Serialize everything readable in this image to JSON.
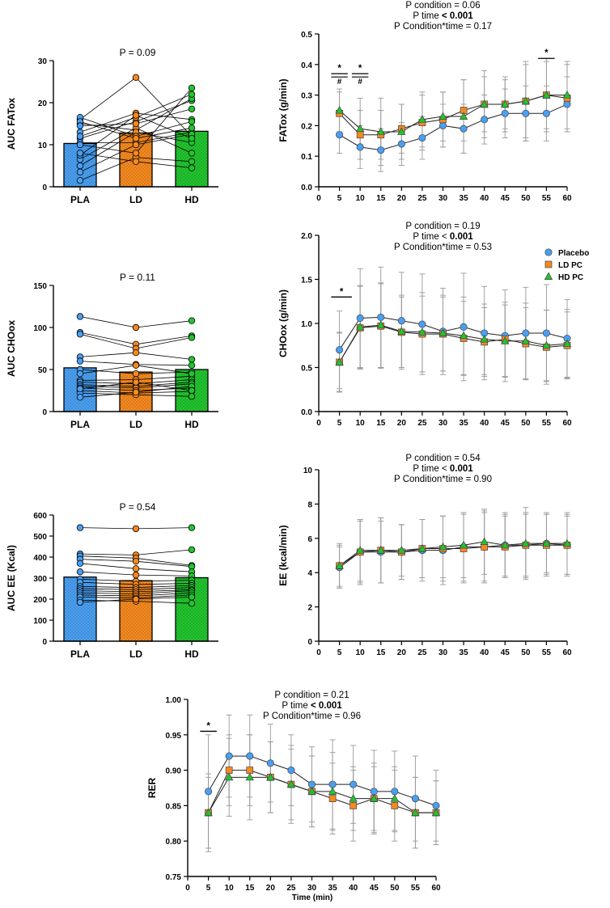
{
  "colors": {
    "placebo": "#4a9ff0",
    "ld": "#f5891f",
    "hd": "#22c42f",
    "error": "#999999",
    "axis": "#000000"
  },
  "legend": [
    {
      "label": "Placebo",
      "marker": "circle",
      "series": "placebo"
    },
    {
      "label": "LD PC",
      "marker": "square",
      "series": "ld"
    },
    {
      "label": "HD PC",
      "marker": "triangle",
      "series": "hd"
    }
  ],
  "xlabel_rer": "Time (min)",
  "chart_data": [
    {
      "id": "auc_fatox",
      "type": "bar",
      "ylabel": "AUC FATox",
      "pvalue": "P = 0.09",
      "categories": [
        "PLA",
        "LD",
        "HD"
      ],
      "means": [
        10.3,
        12.8,
        13.2
      ],
      "ylim": [
        0,
        30
      ],
      "yticks": [
        0,
        10,
        20,
        30
      ],
      "subjects": [
        [
          11.5,
          15.5,
          20.5
        ],
        [
          13.0,
          17.5,
          16.0
        ],
        [
          16.0,
          26.0,
          12.0
        ],
        [
          15.0,
          13.5,
          21.0
        ],
        [
          10.5,
          10.5,
          13.0
        ],
        [
          6.5,
          14.0,
          8.0
        ],
        [
          5.0,
          13.0,
          10.5
        ],
        [
          16.5,
          12.0,
          15.5
        ],
        [
          3.5,
          10.0,
          12.5
        ],
        [
          1.5,
          7.0,
          6.0
        ],
        [
          12.0,
          16.5,
          22.0
        ],
        [
          15.5,
          11.5,
          14.0
        ],
        [
          10.0,
          8.0,
          23.5
        ],
        [
          7.5,
          17.0,
          11.5
        ],
        [
          8.0,
          6.0,
          4.5
        ],
        [
          14.5,
          15.0,
          18.5
        ]
      ]
    },
    {
      "id": "auc_choox",
      "type": "bar",
      "ylabel": "AUC CHOox",
      "pvalue": "P = 0.11",
      "categories": [
        "PLA",
        "LD",
        "HD"
      ],
      "means": [
        52,
        47,
        50
      ],
      "ylim": [
        0,
        150
      ],
      "yticks": [
        0,
        50,
        100,
        150
      ],
      "subjects": [
        [
          113,
          100,
          108
        ],
        [
          94,
          80,
          90
        ],
        [
          92,
          75,
          88
        ],
        [
          65,
          70,
          62
        ],
        [
          60,
          56,
          55
        ],
        [
          50,
          45,
          47
        ],
        [
          37,
          38,
          42
        ],
        [
          35,
          33,
          38
        ],
        [
          32,
          30,
          35
        ],
        [
          30,
          28,
          33
        ],
        [
          28,
          25,
          28
        ],
        [
          25,
          22,
          24
        ],
        [
          22,
          20,
          18
        ],
        [
          17,
          23,
          30
        ],
        [
          45,
          55,
          45
        ],
        [
          27,
          35,
          25
        ]
      ]
    },
    {
      "id": "auc_ee",
      "type": "bar",
      "ylabel": "AUC EE (Kcal)",
      "pvalue": "P = 0.54",
      "categories": [
        "PLA",
        "LD",
        "HD"
      ],
      "means": [
        305,
        288,
        302
      ],
      "ylim": [
        0,
        600
      ],
      "yticks": [
        0,
        100,
        200,
        300,
        400,
        500,
        600
      ],
      "subjects": [
        [
          540,
          535,
          540
        ],
        [
          415,
          410,
          435
        ],
        [
          405,
          395,
          360
        ],
        [
          390,
          380,
          355
        ],
        [
          370,
          345,
          330
        ],
        [
          330,
          315,
          310
        ],
        [
          295,
          285,
          290
        ],
        [
          280,
          270,
          275
        ],
        [
          260,
          255,
          265
        ],
        [
          250,
          245,
          255
        ],
        [
          240,
          235,
          245
        ],
        [
          230,
          225,
          240
        ],
        [
          220,
          215,
          230
        ],
        [
          210,
          205,
          220
        ],
        [
          195,
          190,
          180
        ],
        [
          185,
          200,
          210
        ]
      ]
    },
    {
      "id": "fatox",
      "type": "line",
      "ylabel": "FATox (g/min)",
      "stats": [
        "P condition = 0.06",
        "P time ",
        "< 0.001",
        "P Condition*time = 0.17"
      ],
      "x": [
        5,
        10,
        15,
        20,
        25,
        30,
        35,
        40,
        45,
        50,
        55,
        60
      ],
      "xlim": [
        0,
        60
      ],
      "ylim": [
        0,
        0.5
      ],
      "yticks": [
        0.0,
        0.1,
        0.2,
        0.3,
        0.4,
        0.5
      ],
      "series": [
        {
          "name": "Placebo",
          "values": [
            0.17,
            0.13,
            0.12,
            0.14,
            0.16,
            0.2,
            0.19,
            0.22,
            0.24,
            0.24,
            0.24,
            0.27
          ],
          "sd": [
            0.06,
            0.07,
            0.07,
            0.07,
            0.07,
            0.07,
            0.08,
            0.08,
            0.08,
            0.09,
            0.09,
            0.09
          ]
        },
        {
          "name": "LD PC",
          "values": [
            0.24,
            0.17,
            0.17,
            0.19,
            0.21,
            0.22,
            0.25,
            0.27,
            0.27,
            0.28,
            0.3,
            0.29
          ],
          "sd": [
            0.07,
            0.08,
            0.08,
            0.08,
            0.09,
            0.09,
            0.1,
            0.11,
            0.09,
            0.12,
            0.11,
            0.11
          ]
        },
        {
          "name": "HD PC",
          "values": [
            0.25,
            0.19,
            0.18,
            0.18,
            0.22,
            0.23,
            0.23,
            0.27,
            0.27,
            0.28,
            0.3,
            0.3
          ],
          "sd": [
            0.07,
            0.1,
            0.11,
            0.09,
            0.09,
            0.08,
            0.12,
            0.09,
            0.08,
            0.13,
            0.12,
            0.11
          ]
        }
      ],
      "annotations": [
        {
          "x1": 3,
          "x2": 7,
          "y": 0.37,
          "text": "*",
          "sub": "#"
        },
        {
          "x1": 8,
          "x2": 12,
          "y": 0.37,
          "text": "*",
          "sub": "#"
        },
        {
          "x1": 53,
          "x2": 57,
          "y": 0.42,
          "text": "*",
          "sub": ""
        }
      ]
    },
    {
      "id": "choox",
      "type": "line",
      "ylabel": "CHOox (g/min)",
      "stats": [
        "P condition = 0.19",
        "P time < ",
        "0.001",
        "P Condition*time = 0.53"
      ],
      "x": [
        5,
        10,
        15,
        20,
        25,
        30,
        35,
        40,
        45,
        50,
        55,
        60
      ],
      "xlim": [
        0,
        60
      ],
      "ylim": [
        0,
        2.0
      ],
      "yticks": [
        0.0,
        0.5,
        1.0,
        1.5,
        2.0
      ],
      "series": [
        {
          "name": "Placebo",
          "values": [
            0.7,
            1.06,
            1.07,
            1.03,
            0.99,
            0.91,
            0.96,
            0.89,
            0.86,
            0.89,
            0.89,
            0.83
          ],
          "sd": [
            0.44,
            0.56,
            0.57,
            0.55,
            0.57,
            0.49,
            0.61,
            0.53,
            0.52,
            0.52,
            0.55,
            0.44
          ]
        },
        {
          "name": "LD PC",
          "values": [
            0.56,
            0.95,
            0.97,
            0.9,
            0.88,
            0.88,
            0.83,
            0.79,
            0.82,
            0.77,
            0.73,
            0.75
          ],
          "sd": [
            0.34,
            0.47,
            0.48,
            0.4,
            0.43,
            0.42,
            0.42,
            0.39,
            0.42,
            0.41,
            0.42,
            0.38
          ]
        },
        {
          "name": "HD PC",
          "values": [
            0.56,
            0.96,
            0.98,
            0.91,
            0.9,
            0.89,
            0.86,
            0.82,
            0.8,
            0.8,
            0.75,
            0.77
          ],
          "sd": [
            0.33,
            0.47,
            0.48,
            0.41,
            0.45,
            0.43,
            0.44,
            0.4,
            0.41,
            0.43,
            0.4,
            0.39
          ]
        }
      ],
      "annotations": [
        {
          "x1": 3,
          "x2": 8,
          "y": 1.3,
          "text": "*",
          "sub": ""
        }
      ]
    },
    {
      "id": "ee",
      "type": "line",
      "ylabel": "EE (kcal/min)",
      "stats": [
        "P condition = 0.54",
        "P time < ",
        "0.001",
        "P Condition*time = 0.90"
      ],
      "x": [
        5,
        10,
        15,
        20,
        25,
        30,
        35,
        40,
        45,
        50,
        55,
        60
      ],
      "xlim": [
        0,
        60
      ],
      "ylim": [
        0,
        10
      ],
      "yticks": [
        0,
        2,
        4,
        6,
        8,
        10
      ],
      "series": [
        {
          "name": "Placebo",
          "values": [
            4.3,
            5.2,
            5.2,
            5.2,
            5.3,
            5.3,
            5.5,
            5.5,
            5.6,
            5.6,
            5.7,
            5.6
          ],
          "sd": [
            1.2,
            1.8,
            1.8,
            1.6,
            1.8,
            2.0,
            2.0,
            2.1,
            1.9,
            1.9,
            1.8,
            1.7
          ]
        },
        {
          "name": "LD PC",
          "values": [
            4.4,
            5.2,
            5.3,
            5.2,
            5.4,
            5.4,
            5.4,
            5.5,
            5.5,
            5.6,
            5.6,
            5.6
          ],
          "sd": [
            1.2,
            1.9,
            1.9,
            1.6,
            1.7,
            1.9,
            2.0,
            2.0,
            1.8,
            1.8,
            1.8,
            1.8
          ]
        },
        {
          "name": "HD PC",
          "values": [
            4.4,
            5.3,
            5.3,
            5.3,
            5.4,
            5.5,
            5.6,
            5.8,
            5.6,
            5.7,
            5.7,
            5.7
          ],
          "sd": [
            1.3,
            1.8,
            1.9,
            1.5,
            1.7,
            1.8,
            1.9,
            1.9,
            1.8,
            2.1,
            1.7,
            1.8
          ]
        }
      ],
      "annotations": []
    },
    {
      "id": "rer",
      "type": "line",
      "ylabel": "RER",
      "stats": [
        "P condition = 0.21",
        "P time ",
        "< 0.001",
        "P Condition*time = 0.96"
      ],
      "x": [
        5,
        10,
        15,
        20,
        25,
        30,
        35,
        40,
        45,
        50,
        55,
        60
      ],
      "xlim": [
        0,
        60
      ],
      "ylim": [
        0.75,
        1.0
      ],
      "yticks": [
        0.75,
        0.8,
        0.85,
        0.9,
        0.95,
        1.0
      ],
      "series": [
        {
          "name": "Placebo",
          "values": [
            0.87,
            0.92,
            0.92,
            0.91,
            0.9,
            0.88,
            0.88,
            0.88,
            0.87,
            0.87,
            0.86,
            0.85
          ],
          "sd": [
            0.08,
            0.058,
            0.058,
            0.055,
            0.05,
            0.053,
            0.063,
            0.055,
            0.058,
            0.057,
            0.06,
            0.05
          ]
        },
        {
          "name": "LD PC",
          "values": [
            0.84,
            0.9,
            0.9,
            0.89,
            0.88,
            0.87,
            0.86,
            0.85,
            0.86,
            0.85,
            0.84,
            0.84
          ],
          "sd": [
            0.05,
            0.05,
            0.05,
            0.05,
            0.055,
            0.05,
            0.05,
            0.05,
            0.05,
            0.05,
            0.05,
            0.045
          ]
        },
        {
          "name": "HD PC",
          "values": [
            0.84,
            0.89,
            0.89,
            0.89,
            0.88,
            0.87,
            0.87,
            0.86,
            0.86,
            0.86,
            0.84,
            0.84
          ],
          "sd": [
            0.055,
            0.055,
            0.06,
            0.05,
            0.05,
            0.05,
            0.055,
            0.045,
            0.045,
            0.045,
            0.05,
            0.045
          ]
        }
      ],
      "annotations": [
        {
          "x1": 3,
          "x2": 7,
          "y": 0.955,
          "text": "*",
          "sub": ""
        }
      ]
    }
  ]
}
